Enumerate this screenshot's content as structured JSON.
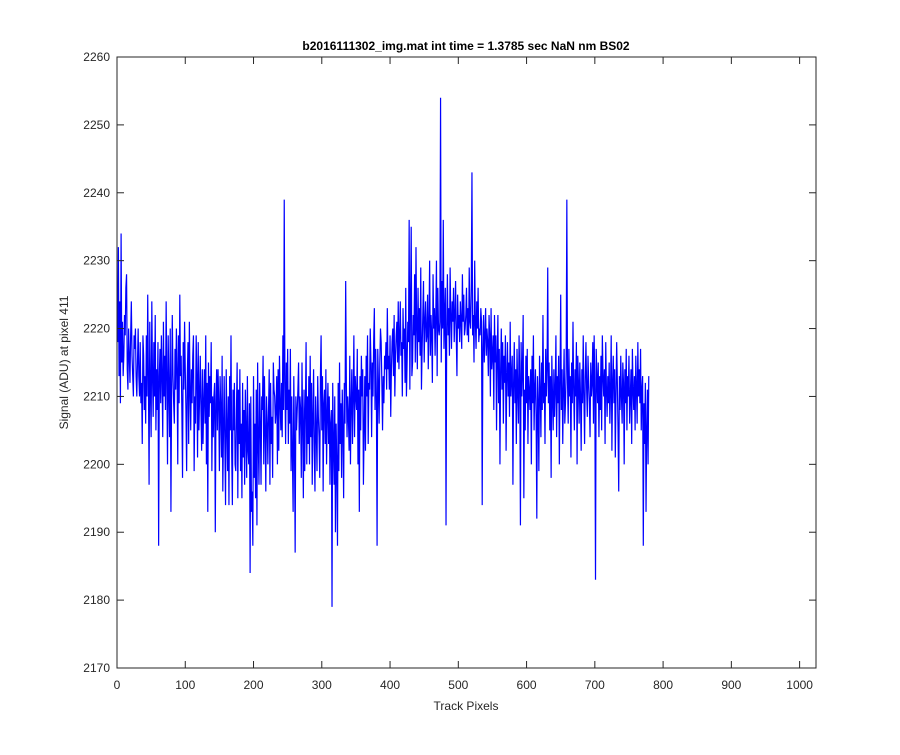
{
  "chart_data": {
    "type": "line",
    "title": "b2016111302_img.mat int time = 1.3785 sec  NaN nm BS02",
    "xlabel": "Track Pixels",
    "ylabel": "Signal (ADU) at pixel 411",
    "xlim": [
      0,
      1024
    ],
    "ylim": [
      2170,
      2260
    ],
    "xticks": [
      "0",
      "100",
      "200",
      "300",
      "400",
      "500",
      "600",
      "700",
      "800",
      "900",
      "1000"
    ],
    "yticks": [
      "2170",
      "2180",
      "2190",
      "2200",
      "2210",
      "2220",
      "2230",
      "2240",
      "2250",
      "2260"
    ],
    "grid": false,
    "legend": "none",
    "line_color": "#0000ff",
    "series": [
      {
        "x_start": 1,
        "x_step": 1,
        "values": [
          2218,
          2232,
          2213,
          2224,
          2209,
          2234,
          2215,
          2221,
          2213,
          2216,
          2222,
          2219,
          2226,
          2228,
          2214,
          2211,
          2220,
          2216,
          2212,
          2219,
          2224,
          2216,
          2213,
          2210,
          2219,
          2217,
          2220,
          2213,
          2210,
          2215,
          2220,
          2213,
          2210,
          2218,
          2209,
          2212,
          2203,
          2219,
          2216,
          2208,
          2213,
          2206,
          2219,
          2210,
          2225,
          2213,
          2197,
          2221,
          2211,
          2204,
          2224,
          2213,
          2207,
          2218,
          2210,
          2222,
          2205,
          2214,
          2208,
          2218,
          2188,
          2213,
          2217,
          2209,
          2219,
          2213,
          2204,
          2221,
          2210,
          2216,
          2208,
          2224,
          2213,
          2200,
          2219,
          2211,
          2204,
          2220,
          2193,
          2211,
          2222,
          2213,
          2209,
          2206,
          2217,
          2211,
          2220,
          2214,
          2200,
          2219,
          2209,
          2225,
          2213,
          2216,
          2208,
          2198,
          2218,
          2211,
          2221,
          2214,
          2208,
          2199,
          2213,
          2218,
          2203,
          2221,
          2211,
          2205,
          2214,
          2209,
          2216,
          2219,
          2199,
          2210,
          2206,
          2219,
          2213,
          2201,
          2218,
          2205,
          2210,
          2216,
          2208,
          2202,
          2214,
          2203,
          2209,
          2214,
          2206,
          2219,
          2200,
          2212,
          2193,
          2215,
          2207,
          2213,
          2209,
          2218,
          2199,
          2210,
          2204,
          2210,
          2212,
          2190,
          2209,
          2214,
          2205,
          2214,
          2209,
          2199,
          2213,
          2208,
          2201,
          2216,
          2196,
          2205,
          2213,
          2203,
          2194,
          2214,
          2206,
          2199,
          2210,
          2194,
          2213,
          2205,
          2219,
          2202,
          2194,
          2211,
          2205,
          2212,
          2200,
          2199,
          2208,
          2215,
          2195,
          2211,
          2203,
          2214,
          2199,
          2206,
          2195,
          2212,
          2201,
          2208,
          2197,
          2211,
          2205,
          2198,
          2213,
          2202,
          2200,
          2209,
          2184,
          2210,
          2193,
          2196,
          2188,
          2213,
          2198,
          2206,
          2195,
          2211,
          2191,
          2215,
          2203,
          2197,
          2212,
          2206,
          2197,
          2210,
          2208,
          2216,
          2200,
          2213,
          2205,
          2196,
          2210,
          2206,
          2200,
          2208,
          2214,
          2197,
          2212,
          2203,
          2207,
          2198,
          2215,
          2211,
          2210,
          2206,
          2208,
          2213,
          2200,
          2214,
          2202,
          2216,
          2209,
          2205,
          2212,
          2204,
          2219,
          2208,
          2239,
          2212,
          2203,
          2215,
          2208,
          2217,
          2203,
          2211,
          2206,
          2217,
          2199,
          2210,
          2201,
          2193,
          2213,
          2203,
          2187,
          2210,
          2205,
          2208,
          2211,
          2215,
          2203,
          2210,
          2208,
          2198,
          2215,
          2206,
          2195,
          2211,
          2199,
          2208,
          2218,
          2200,
          2210,
          2203,
          2213,
          2200,
          2216,
          2204,
          2212,
          2197,
          2207,
          2214,
          2202,
          2196,
          2210,
          2205,
          2199,
          2213,
          2207,
          2204,
          2198,
          2213,
          2219,
          2205,
          2213,
          2196,
          2209,
          2211,
          2203,
          2214,
          2200,
          2207,
          2212,
          2203,
          2210,
          2197,
          2206,
          2208,
          2179,
          2212,
          2203,
          2197,
          2210,
          2190,
          2206,
          2200,
          2188,
          2212,
          2199,
          2215,
          2203,
          2209,
          2198,
          2211,
          2205,
          2195,
          2212,
          2206,
          2227,
          2212,
          2204,
          2210,
          2207,
          2202,
          2216,
          2200,
          2209,
          2214,
          2203,
          2210,
          2219,
          2204,
          2213,
          2210,
          2208,
          2217,
          2200,
          2211,
          2193,
          2213,
          2205,
          2216,
          2210,
          2214,
          2197,
          2205,
          2213,
          2202,
          2216,
          2210,
          2219,
          2203,
          2212,
          2211,
          2220,
          2215,
          2204,
          2215,
          2210,
          2218,
          2223,
          2208,
          2217,
          2210,
          2188,
          2217,
          2212,
          2206,
          2215,
          2220,
          2218,
          2212,
          2205,
          2213,
          2209,
          2216,
          2214,
          2218,
          2211,
          2223,
          2214,
          2216,
          2211,
          2219,
          2207,
          2214,
          2218,
          2220,
          2213,
          2222,
          2210,
          2216,
          2219,
          2221,
          2215,
          2224,
          2214,
          2219,
          2224,
          2216,
          2218,
          2210,
          2223,
          2217,
          2220,
          2212,
          2226,
          2210,
          2215,
          2221,
          2218,
          2236,
          2211,
          2224,
          2235,
          2213,
          2215,
          2222,
          2219,
          2228,
          2215,
          2232,
          2220,
          2214,
          2226,
          2218,
          2223,
          2216,
          2229,
          2211,
          2217,
          2222,
          2227,
          2215,
          2221,
          2224,
          2218,
          2219,
          2225,
          2214,
          2221,
          2230,
          2216,
          2222,
          2219,
          2212,
          2228,
          2220,
          2223,
          2216,
          2222,
          2230,
          2213,
          2226,
          2220,
          2219,
          2221,
          2254,
          2215,
          2227,
          2220,
          2236,
          2217,
          2222,
          2226,
          2191,
          2220,
          2228,
          2219,
          2223,
          2216,
          2229,
          2222,
          2217,
          2224,
          2221,
          2226,
          2218,
          2222,
          2227,
          2219,
          2213,
          2225,
          2220,
          2222,
          2218,
          2224,
          2221,
          2217,
          2228,
          2221,
          2225,
          2219,
          2220,
          2222,
          2226,
          2219,
          2223,
          2218,
          2229,
          2221,
          2220,
          2226,
          2243,
          2219,
          2222,
          2215,
          2230,
          2221,
          2217,
          2224,
          2220,
          2226,
          2218,
          2220,
          2219,
          2223,
          2221,
          2194,
          2217,
          2222,
          2215,
          2219,
          2223,
          2216,
          2220,
          2218,
          2213,
          2222,
          2219,
          2210,
          2223,
          2214,
          2216,
          2219,
          2208,
          2222,
          2215,
          2219,
          2205,
          2216,
          2222,
          2209,
          2217,
          2200,
          2214,
          2220,
          2211,
          2218,
          2206,
          2216,
          2212,
          2219,
          2202,
          2213,
          2218,
          2210,
          2215,
          2207,
          2221,
          2210,
          2213,
          2216,
          2197,
          2212,
          2218,
          2209,
          2214,
          2203,
          2217,
          2211,
          2206,
          2219,
          2213,
          2191,
          2218,
          2210,
          2214,
          2222,
          2195,
          2211,
          2205,
          2216,
          2209,
          2217,
          2203,
          2213,
          2211,
          2208,
          2214,
          2200,
          2216,
          2209,
          2219,
          2205,
          2211,
          2214,
          2207,
          2192,
          2213,
          2209,
          2199,
          2216,
          2211,
          2204,
          2215,
          2208,
          2222,
          2209,
          2212,
          2203,
          2217,
          2210,
          2214,
          2229,
          2209,
          2215,
          2205,
          2213,
          2198,
          2216,
          2210,
          2205,
          2214,
          2207,
          2211,
          2219,
          2204,
          2213,
          2209,
          2216,
          2200,
          2212,
          2225,
          2208,
          2214,
          2203,
          2211,
          2217,
          2206,
          2209,
          2214,
          2239,
          2212,
          2206,
          2217,
          2210,
          2213,
          2201,
          2215,
          2209,
          2221,
          2211,
          2205,
          2214,
          2210,
          2218,
          2200,
          2216,
          2212,
          2206,
          2215,
          2210,
          2202,
          2214,
          2209,
          2219,
          2210,
          2203,
          2213,
          2218,
          2211,
          2207,
          2216,
          2212,
          2209,
          2204,
          2215,
          2210,
          2212,
          2218,
          2206,
          2219,
          2211,
          2183,
          2217,
          2213,
          2209,
          2215,
          2204,
          2213,
          2208,
          2216,
          2205,
          2219,
          2213,
          2210,
          2214,
          2203,
          2218,
          2211,
          2207,
          2213,
          2209,
          2215,
          2206,
          2211,
          2219,
          2202,
          2212,
          2216,
          2209,
          2214,
          2201,
          2210,
          2218,
          2212,
          2205,
          2196,
          2213,
          2208,
          2216,
          2210,
          2206,
          2215,
          2212,
          2200,
          2214,
          2209,
          2217,
          2205,
          2213,
          2210,
          2216,
          2206,
          2210,
          2214,
          2203,
          2217,
          2211,
          2208,
          2213,
          2205,
          2216,
          2211,
          2206,
          2218,
          2210,
          2214,
          2209,
          2217,
          2205,
          2211,
          2213,
          2188,
          2209,
          2203,
          2212,
          2193,
          2205,
          2211,
          2200,
          2213
        ]
      }
    ]
  }
}
